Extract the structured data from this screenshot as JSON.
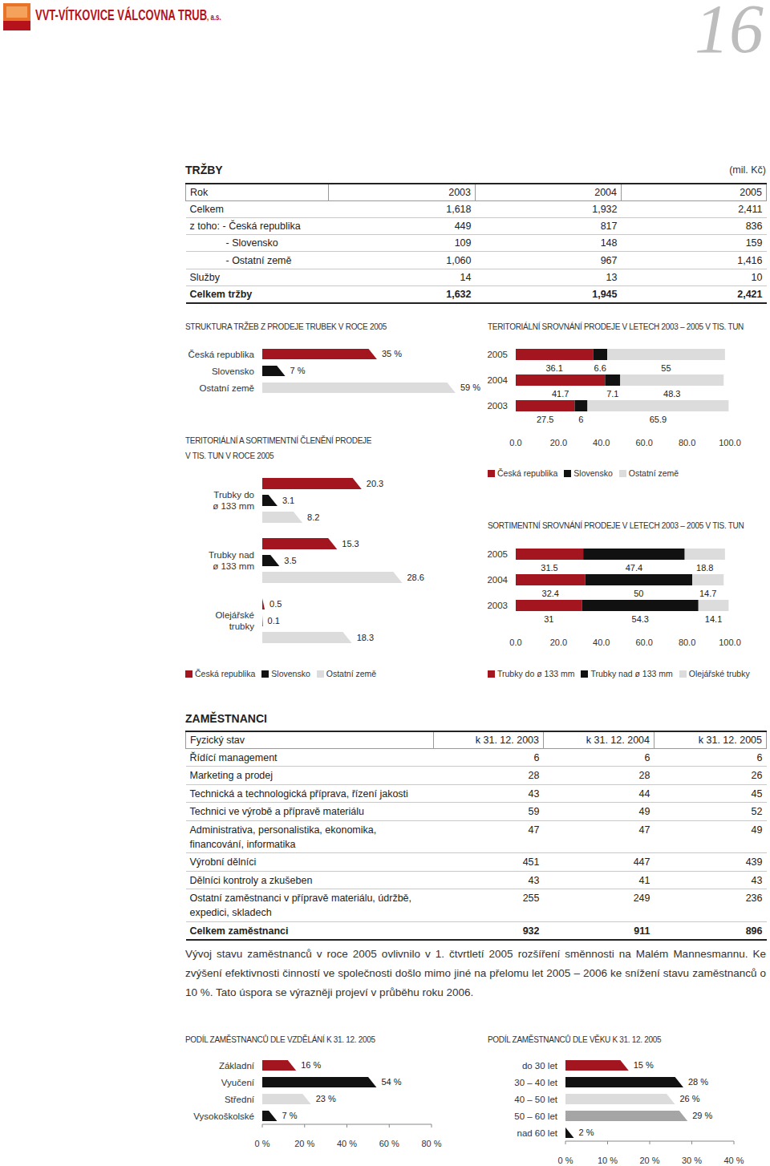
{
  "header": {
    "company": "VVT-VÍTKOVICE VÁLCOVNA TRUB",
    "legal_form": ", a.s.",
    "page": "16"
  },
  "revenue": {
    "title": "TRŽBY",
    "unit": "(mil. Kč)",
    "columns": [
      "Rok",
      "2003",
      "2004",
      "2005"
    ],
    "rows": [
      [
        "Celkem",
        "1,618",
        "1,932",
        "2,411"
      ],
      [
        "z toho: - Česká republika",
        "449",
        "817",
        "836"
      ],
      [
        "- Slovensko",
        "109",
        "148",
        "159"
      ],
      [
        "- Ostatní země",
        "1,060",
        "967",
        "1,416"
      ],
      [
        "Služby",
        "14",
        "13",
        "10"
      ],
      [
        "Celkem tržby",
        "1,632",
        "1,945",
        "2,421"
      ]
    ]
  },
  "chart_data": [
    {
      "type": "bar",
      "orientation": "horizontal",
      "title": "STRUKTURA TRŽEB Z PRODEJE TRUBEK V ROCE 2005",
      "categories": [
        "Česká republika",
        "Slovensko",
        "Ostatní země"
      ],
      "values": [
        35,
        7,
        59
      ],
      "value_labels": [
        "35 %",
        "7 %",
        "59 %"
      ],
      "colors": [
        "#a3161f",
        "#111111",
        "#dcdcdc"
      ],
      "xlim": [
        0,
        60
      ],
      "tick_labels": "y",
      "data_labels": true
    },
    {
      "type": "bar",
      "orientation": "horizontal",
      "title": "TERITORIÁLNÍ A SORTIMENTNÍ ČLENĚNÍ PRODEJE\nV TIS. TUN V ROCE 2005",
      "categories": [
        "Trubky do\nø 133 mm",
        "Trubky nad\nø 133 mm",
        "Olejářské\ntrubky"
      ],
      "series": [
        {
          "name": "Česká republika",
          "color": "#a3161f",
          "values": [
            20.3,
            15.3,
            0.5
          ]
        },
        {
          "name": "Slovensko",
          "color": "#111111",
          "values": [
            3.1,
            3.5,
            0.1
          ]
        },
        {
          "name": "Ostatní země",
          "color": "#dcdcdc",
          "values": [
            8.2,
            28.6,
            18.3
          ]
        }
      ],
      "xlim": [
        0,
        30
      ],
      "tick_labels": "y",
      "data_labels": true,
      "legend": "bottom left"
    },
    {
      "type": "bar",
      "orientation": "horizontal",
      "stacked": true,
      "title": "TERITORIÁLNÍ SROVNÁNÍ PRODEJE V LETECH 2003 – 2005 V TIS. TUN",
      "categories": [
        "2005",
        "2004",
        "2003"
      ],
      "series": [
        {
          "name": "Česká republika",
          "color": "#a3161f",
          "values": [
            36.1,
            41.7,
            27.5
          ]
        },
        {
          "name": "Slovensko",
          "color": "#111111",
          "values": [
            6.6,
            7.1,
            6
          ]
        },
        {
          "name": "Ostatní země",
          "color": "#dcdcdc",
          "values": [
            55,
            48.3,
            65.9
          ]
        }
      ],
      "xlim": [
        0,
        100
      ],
      "xticks": [
        {
          "value": 0,
          "label": "0.0"
        },
        {
          "value": 20,
          "label": "20.0"
        },
        {
          "value": 40,
          "label": "40.0"
        },
        {
          "value": 60,
          "label": "60.0"
        },
        {
          "value": 80,
          "label": "80.0"
        },
        {
          "value": 100,
          "label": "100.0"
        }
      ],
      "data_labels": true,
      "legend": "bottom left"
    },
    {
      "type": "bar",
      "orientation": "horizontal",
      "stacked": true,
      "title": "SORTIMENTNÍ SROVNÁNÍ PRODEJE V LETECH 2003 – 2005 V TIS. TUN",
      "categories": [
        "2005",
        "2004",
        "2003"
      ],
      "series": [
        {
          "name": "Trubky do ø 133 mm",
          "color": "#a3161f",
          "values": [
            31.5,
            32.4,
            31
          ]
        },
        {
          "name": "Trubky nad ø 133 mm",
          "color": "#111111",
          "values": [
            47.4,
            50,
            54.3
          ]
        },
        {
          "name": "Olejářské trubky",
          "color": "#dcdcdc",
          "values": [
            18.8,
            14.7,
            14.1
          ]
        }
      ],
      "xlim": [
        0,
        100
      ],
      "xticks": [
        {
          "value": 0,
          "label": "0.0"
        },
        {
          "value": 20,
          "label": "20.0"
        },
        {
          "value": 40,
          "label": "40.0"
        },
        {
          "value": 60,
          "label": "60.0"
        },
        {
          "value": 80,
          "label": "80.0"
        },
        {
          "value": 100,
          "label": "100.0"
        }
      ],
      "data_labels": true,
      "legend": "bottom left"
    },
    {
      "type": "bar",
      "orientation": "horizontal",
      "title": "PODÍL ZAMĚSTNANCŮ DLE VZDĚLÁNÍ K 31. 12. 2005",
      "categories": [
        "Základní",
        "Vyučení",
        "Střední",
        "Vysokoškolské"
      ],
      "values": [
        16,
        54,
        23,
        7
      ],
      "value_labels": [
        "16 %",
        "54 %",
        "23 %",
        "7 %"
      ],
      "colors": [
        "#a3161f",
        "#111111",
        "#dcdcdc",
        "#111111"
      ],
      "xlim": [
        0,
        80
      ],
      "xticks": [
        {
          "value": 0,
          "label": "0 %"
        },
        {
          "value": 20,
          "label": "20 %"
        },
        {
          "value": 40,
          "label": "40 %"
        },
        {
          "value": 60,
          "label": "60 %"
        },
        {
          "value": 80,
          "label": "80 %"
        }
      ],
      "data_labels": true
    },
    {
      "type": "bar",
      "orientation": "horizontal",
      "title": "PODÍL ZAMĚSTNANCŮ DLE VĚKU K 31. 12. 2005",
      "categories": [
        "do 30 let",
        "30 – 40 let",
        "40 – 50 let",
        "50 – 60 let",
        "nad 60 let"
      ],
      "values": [
        15,
        28,
        26,
        29,
        2
      ],
      "value_labels": [
        "15 %",
        "28 %",
        "26 %",
        "29 %",
        "2 %"
      ],
      "colors": [
        "#a3161f",
        "#111111",
        "#dcdcdc",
        "#a5a5a5",
        "#111111"
      ],
      "xlim": [
        0,
        40
      ],
      "xticks": [
        {
          "value": 0,
          "label": "0 %"
        },
        {
          "value": 10,
          "label": "10 %"
        },
        {
          "value": 20,
          "label": "20 %"
        },
        {
          "value": 30,
          "label": "30 %"
        },
        {
          "value": 40,
          "label": "40 %"
        }
      ],
      "data_labels": true
    }
  ],
  "employees": {
    "title": "ZAMĚSTNANCI",
    "columns": [
      "Fyzický stav",
      "k 31. 12. 2003",
      "k 31. 12. 2004",
      "k 31. 12. 2005"
    ],
    "rows": [
      [
        "Řídící management",
        "6",
        "6",
        "6"
      ],
      [
        "Marketing a prodej",
        "28",
        "28",
        "26"
      ],
      [
        "Technická a technologická příprava, řízení jakosti",
        "43",
        "44",
        "45"
      ],
      [
        "Technici ve výrobě a přípravě materiálu",
        "59",
        "49",
        "52"
      ],
      [
        "Administrativa, personalistika, ekonomika,\nfinancování, informatika",
        "47",
        "47",
        "49"
      ],
      [
        "Výrobní dělníci",
        "451",
        "447",
        "439"
      ],
      [
        "Dělníci kontroly a zkušeben",
        "43",
        "41",
        "43"
      ],
      [
        "Ostatní zaměstnanci v přípravě materiálu, údržbě,\nexpedici, skladech",
        "255",
        "249",
        "236"
      ],
      [
        "Celkem zaměstnanci",
        "932",
        "911",
        "896"
      ]
    ]
  },
  "note": "Vývoj stavu zaměstnanců v roce 2005 ovlivnilo v 1. čtvrtletí 2005 rozšíření směnnosti na Malém Mannesmannu. Ke zvýšení efektivnosti činností ve společnosti došlo mimo jiné na přelomu let 2005 – 2006 ke snížení stavu zaměstnanců o 10 %. Tato úspora se výrazněji projeví v průběhu roku 2006."
}
